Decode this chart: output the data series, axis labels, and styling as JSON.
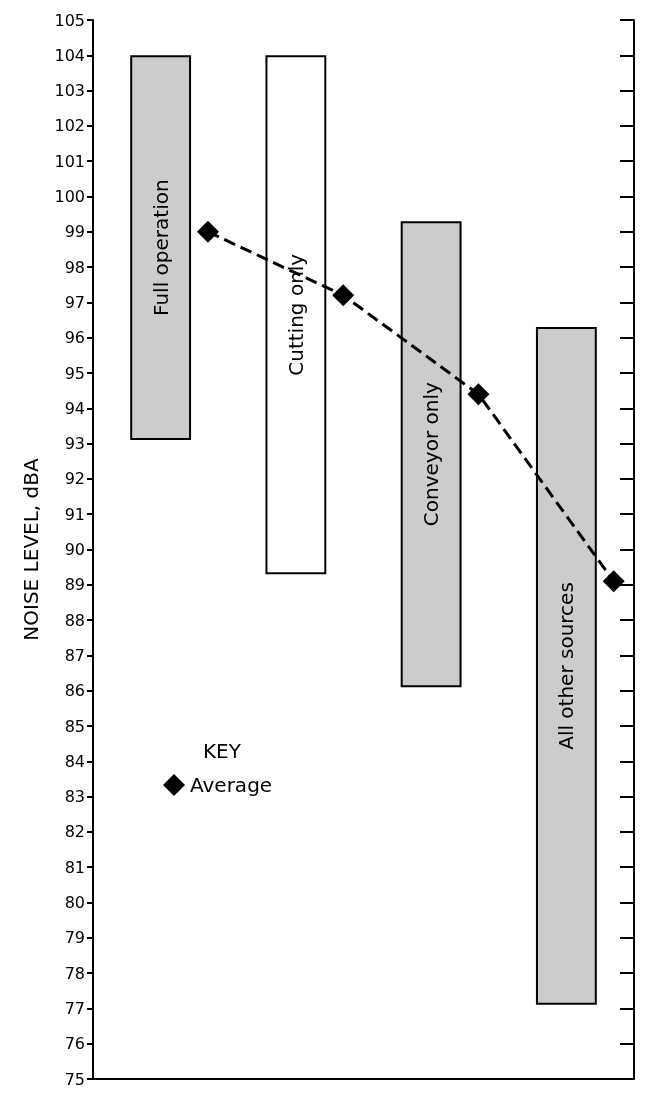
{
  "chart_data": {
    "type": "bar",
    "ylabel": "NOISE LEVEL, dBA",
    "legend_title": "KEY",
    "categories": [
      "Full operation",
      "Cutting only",
      "Conveyor only",
      "All other sources"
    ],
    "base": [
      93.1,
      89.3,
      86.1,
      77.1
    ],
    "values": [
      10.9,
      14.7,
      13.2,
      19.2
    ],
    "colors": [
      "#cccccc",
      "#ffffff",
      "#cccccc",
      "#cccccc"
    ],
    "series": [
      {
        "name": "Average",
        "type": "line",
        "color": "#000000",
        "values": [
          99.0,
          97.2,
          94.4,
          89.1
        ],
        "marker": "diamond",
        "line_style": "dashed"
      }
    ],
    "ylim": [
      75,
      105
    ],
    "yticks": [
      75,
      76,
      77,
      78,
      79,
      80,
      81,
      82,
      83,
      84,
      85,
      86,
      87,
      88,
      89,
      90,
      91,
      92,
      93,
      94,
      95,
      96,
      97,
      98,
      99,
      100,
      101,
      102,
      103,
      104,
      105
    ],
    "tick_labels": "y",
    "grid": false,
    "legend": "bottom left"
  }
}
